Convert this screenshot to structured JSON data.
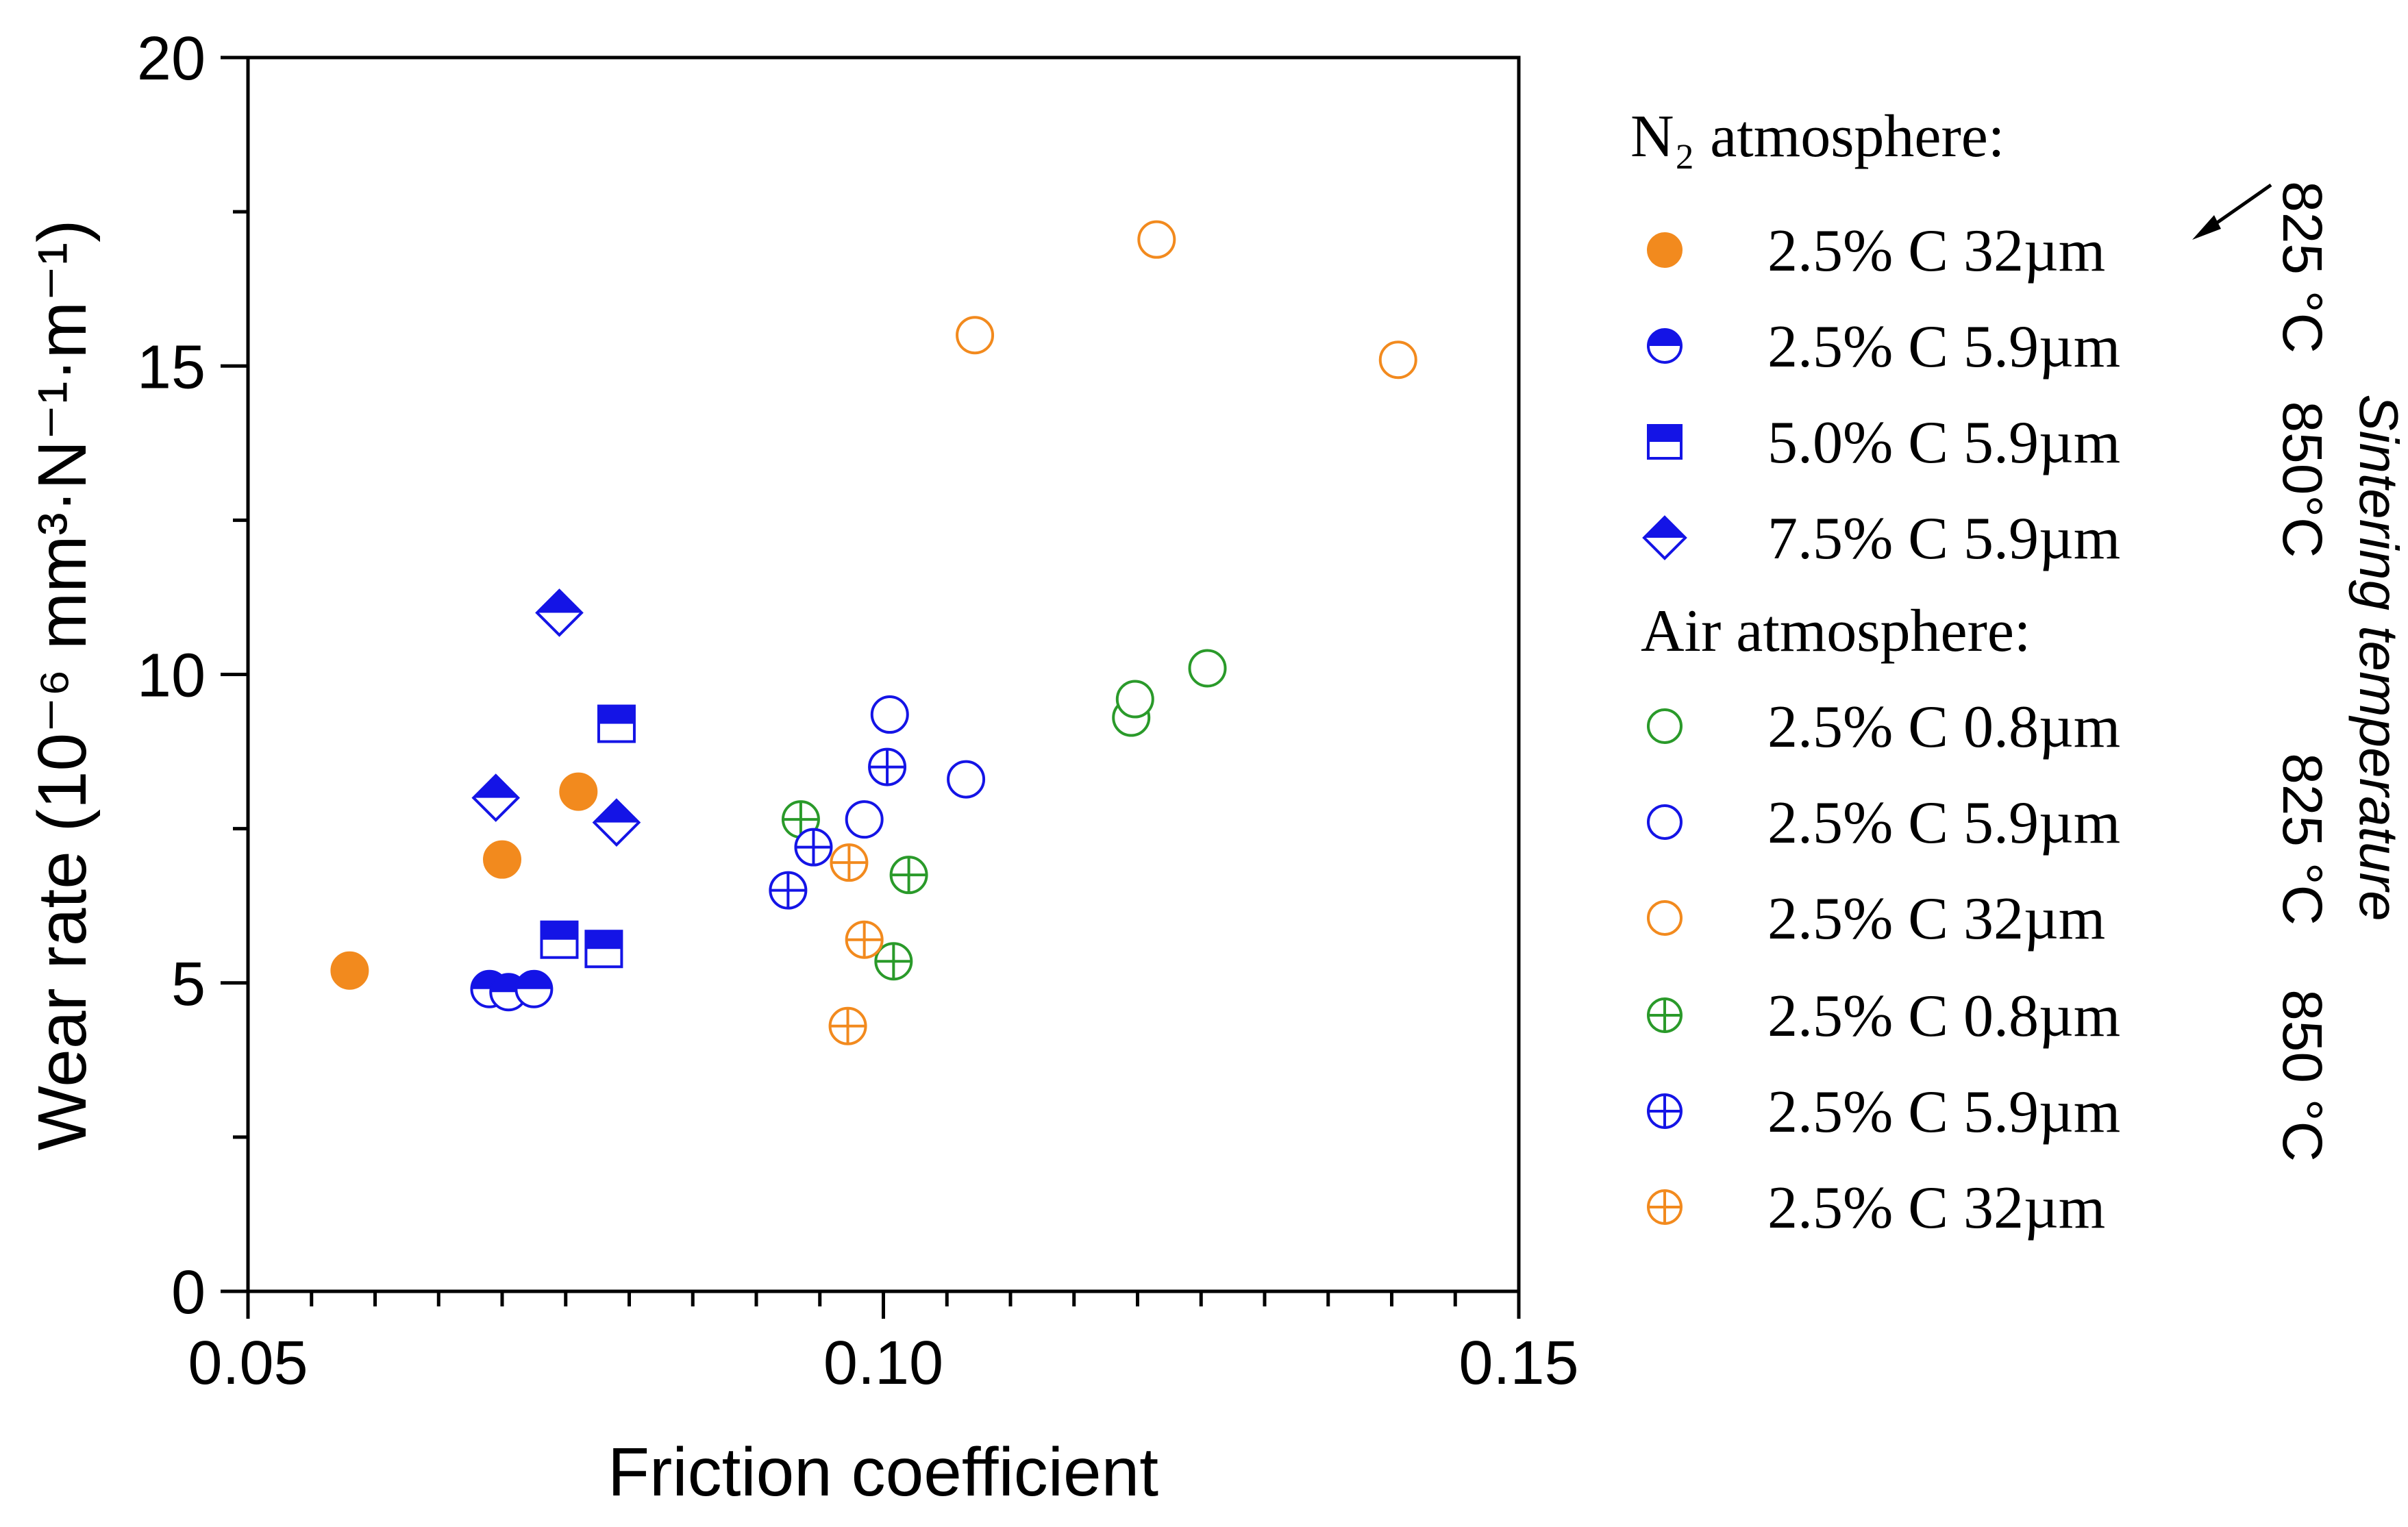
{
  "chart_data": {
    "type": "scatter",
    "title": "",
    "xlabel": "Friction coefficient",
    "ylabel": "Wear rate (10⁻⁶ mm³·N⁻¹·m⁻¹)",
    "xlim": [
      0.05,
      0.15
    ],
    "ylim": [
      0,
      20
    ],
    "x_ticks": [
      "0.05",
      "0.10",
      "0.15"
    ],
    "y_ticks": [
      "0",
      "5",
      "10",
      "15",
      "20"
    ],
    "grid": false,
    "legend_position": "right",
    "legend_headings": {
      "n2": "N₂ atmosphere:",
      "air": "Air atmosphere:"
    },
    "temperature_annotations": {
      "side_title": "Sintering temperature",
      "n2_825": "825 °C",
      "n2_850": "850°C",
      "air_825": "825 °C",
      "air_850": "850 °C"
    },
    "colors": {
      "orange": "#f28a1e",
      "blue": "#1414e6",
      "green": "#2a9a2a"
    },
    "series": [
      {
        "name": "2.5% C 32µm",
        "group": "N₂ atmosphere",
        "temperature": "825 °C",
        "marker": "circle-filled",
        "color": "#f28a1e",
        "points": [
          [
            0.058,
            5.2
          ],
          [
            0.07,
            7.0
          ],
          [
            0.076,
            8.1
          ]
        ]
      },
      {
        "name": "2.5% C 5.9µm",
        "group": "N₂ atmosphere",
        "temperature": "850°C",
        "marker": "circle-half",
        "color": "#1414e6",
        "points": [
          [
            0.069,
            4.9
          ],
          [
            0.0705,
            4.85
          ],
          [
            0.0725,
            4.9
          ]
        ]
      },
      {
        "name": "5.0% C 5.9µm",
        "group": "N₂ atmosphere",
        "temperature": "850°C",
        "marker": "square-half",
        "color": "#1414e6",
        "points": [
          [
            0.0745,
            5.7
          ],
          [
            0.078,
            5.55
          ],
          [
            0.079,
            9.2
          ]
        ]
      },
      {
        "name": "7.5% C 5.9µm",
        "group": "N₂ atmosphere",
        "temperature": "850°C",
        "marker": "diamond-half",
        "color": "#1414e6",
        "points": [
          [
            0.0745,
            11.0
          ],
          [
            0.0695,
            8.0
          ],
          [
            0.079,
            7.6
          ]
        ]
      },
      {
        "name": "2.5% C 0.8µm",
        "group": "Air atmosphere",
        "temperature": "825 °C",
        "marker": "circle-open",
        "color": "#2a9a2a",
        "points": [
          [
            0.1195,
            9.3
          ],
          [
            0.1198,
            9.6
          ],
          [
            0.1255,
            10.1
          ]
        ]
      },
      {
        "name": "2.5% C 5.9µm",
        "group": "Air atmosphere",
        "temperature": "825 °C",
        "marker": "circle-open",
        "color": "#1414e6",
        "points": [
          [
            0.1005,
            9.35
          ],
          [
            0.0985,
            7.65
          ],
          [
            0.1065,
            8.3
          ]
        ]
      },
      {
        "name": "2.5% C 32µm",
        "group": "Air atmosphere",
        "temperature": "825 °C",
        "marker": "circle-open",
        "color": "#f28a1e",
        "points": [
          [
            0.1072,
            15.5
          ],
          [
            0.1215,
            17.05
          ],
          [
            0.1405,
            15.1
          ]
        ]
      },
      {
        "name": "2.5% C 0.8µm",
        "group": "Air atmosphere",
        "temperature": "850 °C",
        "marker": "circle-cross",
        "color": "#2a9a2a",
        "points": [
          [
            0.0935,
            7.65
          ],
          [
            0.102,
            6.75
          ],
          [
            0.1008,
            5.35
          ]
        ]
      },
      {
        "name": "2.5% C 5.9µm",
        "group": "Air atmosphere",
        "temperature": "850 °C",
        "marker": "circle-cross",
        "color": "#1414e6",
        "points": [
          [
            0.0925,
            6.5
          ],
          [
            0.0945,
            7.2
          ],
          [
            0.1003,
            8.5
          ]
        ]
      },
      {
        "name": "2.5% C 32µm",
        "group": "Air atmosphere",
        "temperature": "850 °C",
        "marker": "circle-cross",
        "color": "#f28a1e",
        "points": [
          [
            0.0973,
            6.95
          ],
          [
            0.0985,
            5.7
          ],
          [
            0.0972,
            4.3
          ]
        ]
      }
    ]
  }
}
